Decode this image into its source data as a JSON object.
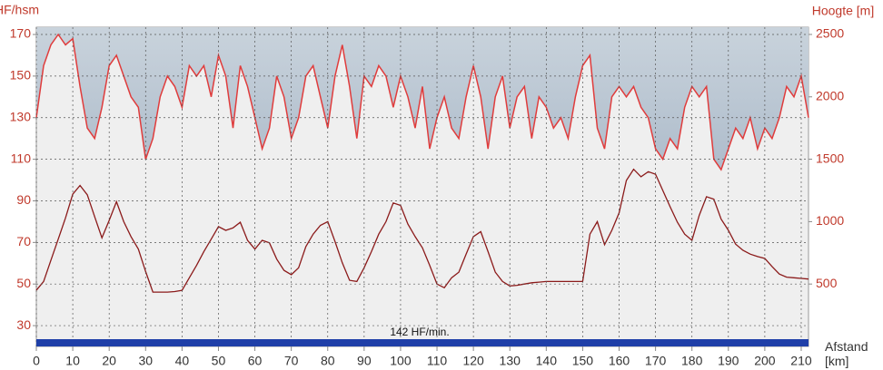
{
  "chart_data": {
    "type": "line",
    "ylabel": "HF/hsm",
    "y2label": "Hoogte [m]",
    "xlabel": "Afstand [km]",
    "annotation": "142 HF/min.",
    "x": [
      0,
      2,
      4,
      6,
      8,
      10,
      12,
      14,
      16,
      18,
      20,
      22,
      24,
      26,
      28,
      30,
      32,
      34,
      36,
      38,
      40,
      42,
      44,
      46,
      48,
      50,
      52,
      54,
      56,
      58,
      60,
      62,
      64,
      66,
      68,
      70,
      72,
      74,
      76,
      78,
      80,
      82,
      84,
      86,
      88,
      90,
      92,
      94,
      96,
      98,
      100,
      102,
      104,
      106,
      108,
      110,
      112,
      114,
      116,
      118,
      120,
      122,
      124,
      126,
      128,
      130,
      132,
      134,
      136,
      138,
      140,
      142,
      144,
      146,
      148,
      150,
      152,
      154,
      156,
      158,
      160,
      162,
      164,
      166,
      168,
      170,
      172,
      174,
      176,
      178,
      180,
      182,
      184,
      186,
      188,
      190,
      192,
      194,
      196,
      198,
      200,
      202,
      204,
      206,
      208,
      210,
      212
    ],
    "series": [
      {
        "name": "HF",
        "color": "#e03c3c",
        "axis": "y",
        "values": [
          130,
          155,
          165,
          170,
          165,
          168,
          145,
          125,
          120,
          135,
          155,
          160,
          150,
          140,
          135,
          110,
          120,
          140,
          150,
          145,
          135,
          155,
          150,
          155,
          140,
          160,
          150,
          125,
          155,
          145,
          130,
          115,
          125,
          150,
          140,
          120,
          130,
          150,
          155,
          140,
          125,
          150,
          165,
          145,
          120,
          150,
          145,
          155,
          150,
          135,
          150,
          140,
          125,
          145,
          115,
          130,
          140,
          125,
          120,
          140,
          155,
          140,
          115,
          140,
          150,
          125,
          140,
          145,
          120,
          140,
          135,
          125,
          130,
          120,
          140,
          155,
          160,
          125,
          115,
          140,
          145,
          140,
          145,
          135,
          130,
          115,
          110,
          120,
          115,
          135,
          145,
          140,
          145,
          110,
          105,
          115,
          125,
          120,
          130,
          115,
          125,
          120,
          130,
          145,
          140,
          150,
          130
        ]
      },
      {
        "name": "Hoogte",
        "color": "#8b1a1a",
        "axis": "y2",
        "values": [
          450,
          520,
          690,
          860,
          1030,
          1220,
          1290,
          1215,
          1040,
          870,
          1010,
          1160,
          1000,
          880,
          780,
          600,
          435,
          435,
          435,
          440,
          450,
          550,
          650,
          760,
          860,
          960,
          930,
          950,
          995,
          850,
          780,
          850,
          830,
          700,
          610,
          575,
          630,
          800,
          900,
          970,
          1000,
          840,
          670,
          530,
          520,
          630,
          760,
          900,
          1000,
          1150,
          1130,
          980,
          880,
          790,
          650,
          500,
          470,
          550,
          595,
          740,
          880,
          920,
          760,
          595,
          520,
          485,
          490,
          500,
          510,
          515,
          520,
          520,
          520,
          520,
          520,
          520,
          900,
          1000,
          815,
          930,
          1070,
          1330,
          1420,
          1360,
          1400,
          1380,
          1250,
          1120,
          995,
          900,
          850,
          1050,
          1200,
          1180,
          1020,
          930,
          820,
          770,
          740,
          720,
          705,
          640,
          580,
          555,
          550,
          545,
          540
        ]
      }
    ],
    "xlim": [
      0,
      212
    ],
    "xticks": [
      0,
      10,
      20,
      30,
      40,
      50,
      60,
      70,
      80,
      90,
      100,
      110,
      120,
      130,
      140,
      150,
      160,
      170,
      180,
      190,
      200,
      210
    ],
    "ylim": [
      20,
      173.5
    ],
    "yticks": [
      30,
      50,
      70,
      90,
      110,
      130,
      150,
      170
    ],
    "y2lim": [
      0,
      2558
    ],
    "y2ticks": [
      500,
      1000,
      1500,
      2000,
      2500
    ],
    "grid": true
  }
}
